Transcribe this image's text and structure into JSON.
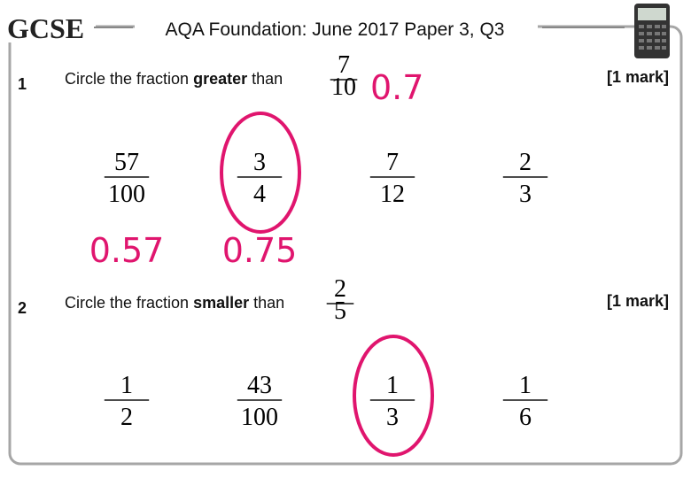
{
  "header": {
    "logo": "GCSE",
    "title": "AQA Foundation: June 2017 Paper 3, Q3"
  },
  "questions": [
    {
      "number": "1",
      "text_before": "Circle the fraction",
      "keyword": "greater",
      "text_after": "than",
      "reference": {
        "numerator": "7",
        "denominator": "10",
        "decimal": "0.7"
      },
      "marks": "[1 mark]",
      "options": [
        {
          "numerator": "57",
          "denominator": "100",
          "decimal": "0.57"
        },
        {
          "numerator": "3",
          "denominator": "4",
          "decimal": "0.75",
          "circled": true
        },
        {
          "numerator": "7",
          "denominator": "12"
        },
        {
          "numerator": "2",
          "denominator": "3"
        }
      ]
    },
    {
      "number": "2",
      "text_before": "Circle the fraction",
      "keyword": "smaller",
      "text_after": "than",
      "reference": {
        "numerator": "2",
        "denominator": "5"
      },
      "marks": "[1 mark]",
      "options": [
        {
          "numerator": "1",
          "denominator": "2"
        },
        {
          "numerator": "43",
          "denominator": "100"
        },
        {
          "numerator": "1",
          "denominator": "3",
          "circled": true
        },
        {
          "numerator": "1",
          "denominator": "6"
        }
      ]
    }
  ]
}
